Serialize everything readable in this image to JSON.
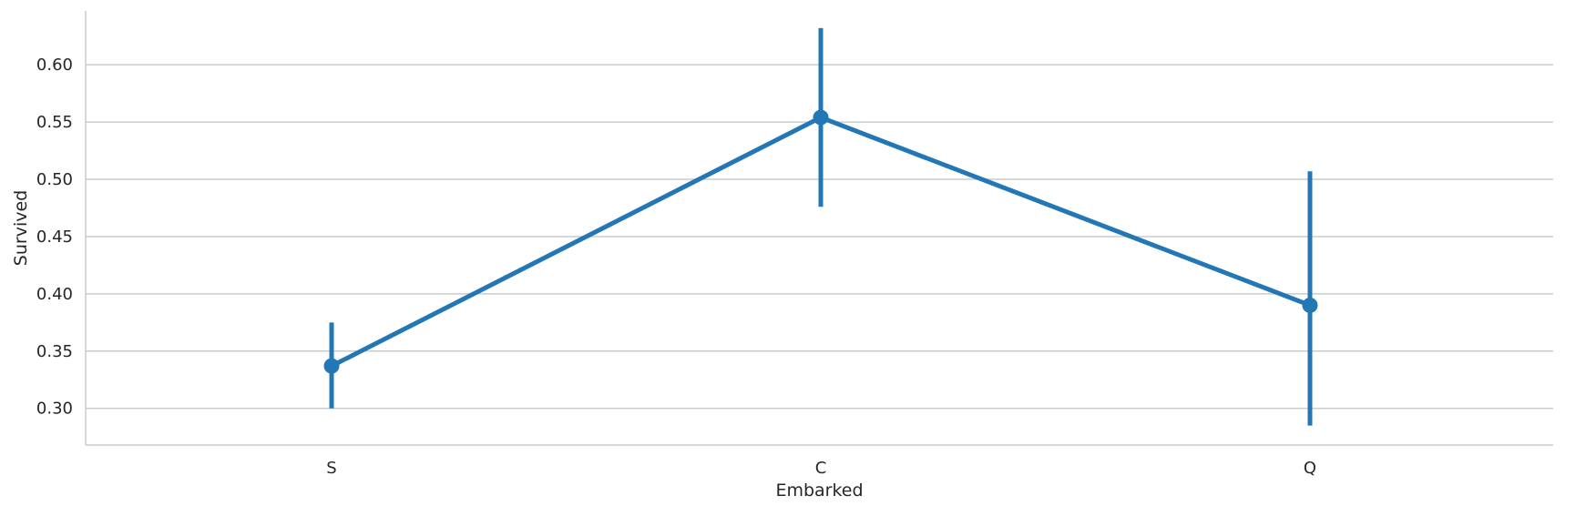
{
  "chart_data": {
    "type": "line",
    "title": "",
    "xlabel": "Embarked",
    "ylabel": "Survived",
    "categories": [
      "S",
      "C",
      "Q"
    ],
    "values": [
      0.337,
      0.554,
      0.39
    ],
    "error_bars": [
      {
        "low": 0.3,
        "high": 0.375
      },
      {
        "low": 0.476,
        "high": 0.632
      },
      {
        "low": 0.285,
        "high": 0.507
      }
    ],
    "y_ticks": [
      "0.30",
      "0.35",
      "0.40",
      "0.45",
      "0.50",
      "0.55",
      "0.60"
    ],
    "ylim": [
      0.268,
      0.647
    ],
    "grid": "horizontal",
    "colors": {
      "series": "#2277b4",
      "grid": "#cccccc",
      "axis": "#cccccc"
    }
  }
}
